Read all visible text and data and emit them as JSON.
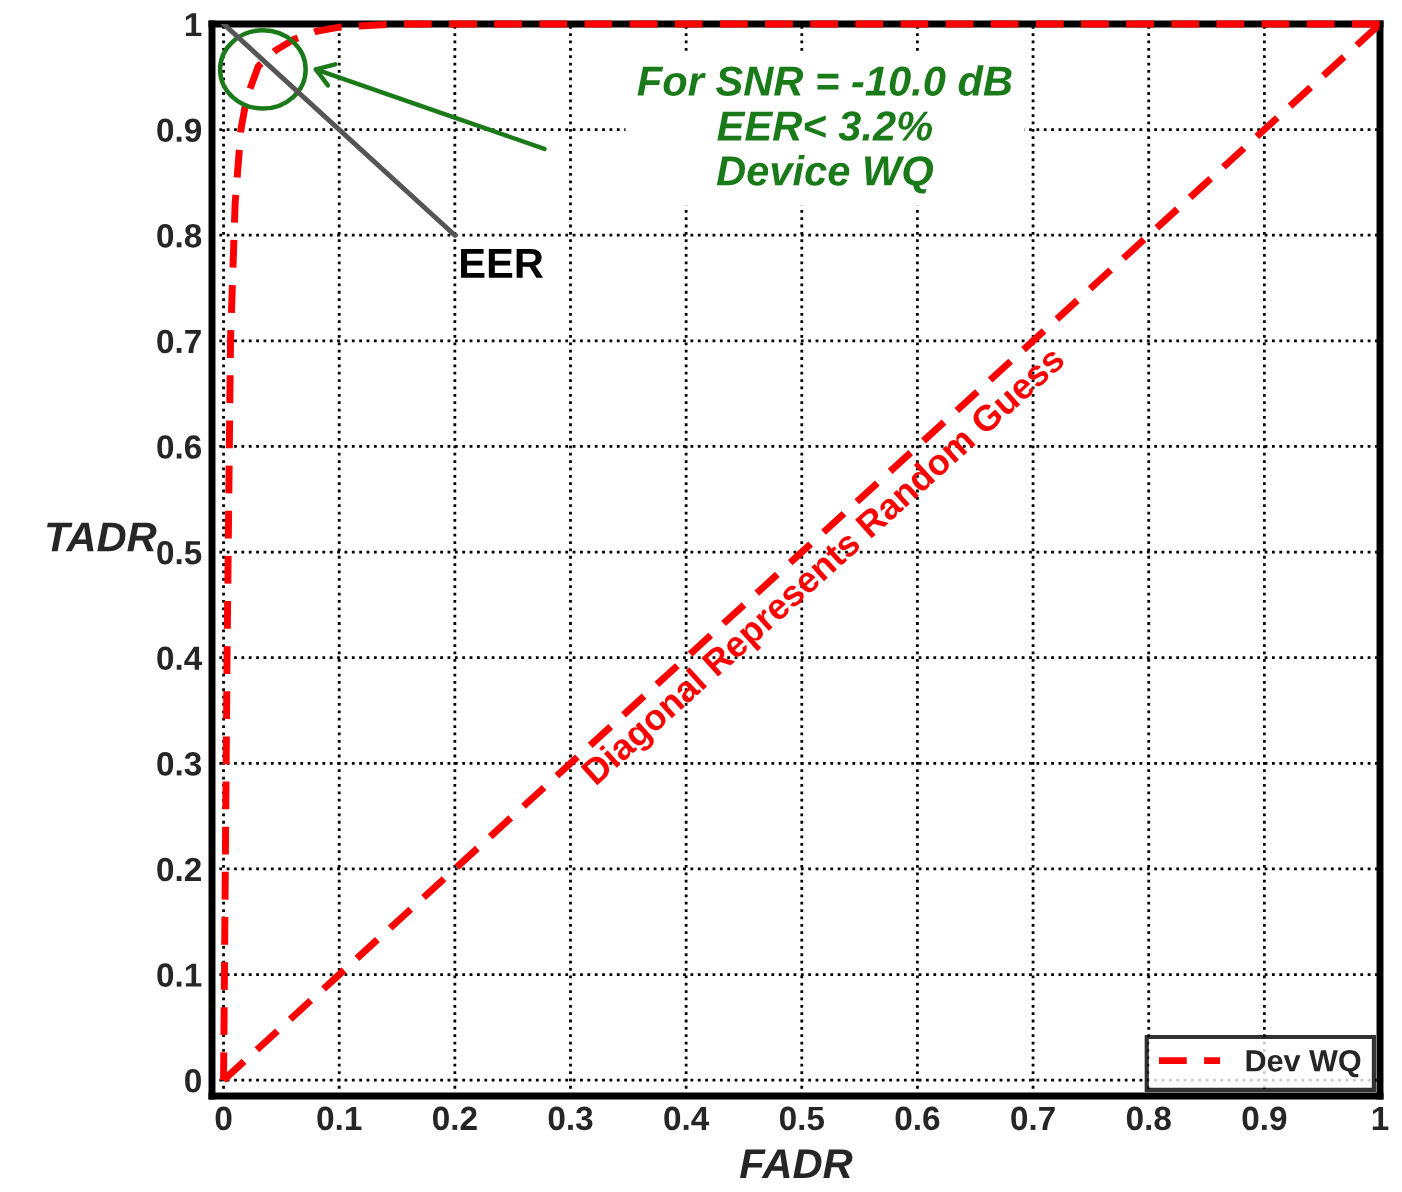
{
  "chart_data": {
    "type": "line",
    "xlabel": "FADR",
    "ylabel": "TADR",
    "series": [
      {
        "name": "Dev WQ",
        "color": "#ff0000",
        "x": [
          0,
          0.003,
          0.006,
          0.01,
          0.015,
          0.02,
          0.03,
          0.045,
          0.06,
          0.08,
          0.1,
          0.15,
          0.3,
          0.6,
          1
        ],
        "values": [
          0,
          0.4,
          0.7,
          0.83,
          0.9,
          0.93,
          0.96,
          0.975,
          0.985,
          0.993,
          0.997,
          1,
          1,
          1,
          1
        ]
      },
      {
        "color": "#ff0000",
        "x": [
          0,
          1
        ],
        "values": [
          0,
          1
        ]
      }
    ],
    "annotations": [
      "For SNR = -10.0 dB\nEER< 3.2%\nDevice WQ",
      "EER",
      "Diagonal Represents Random Guess"
    ],
    "xlim": [
      -0.01,
      1
    ],
    "ylim": [
      -0.015,
      1
    ],
    "xticks": [
      0,
      0.1,
      0.2,
      0.3,
      0.4,
      0.5,
      0.6,
      0.7,
      0.8,
      0.9,
      1
    ],
    "yticks": [
      0,
      0.1,
      0.2,
      0.3,
      0.4,
      0.5,
      0.6,
      0.7,
      0.8,
      0.9,
      1
    ],
    "grid": true,
    "legend": "bottom right",
    "line_style": "dashed",
    "marker": "none"
  }
}
